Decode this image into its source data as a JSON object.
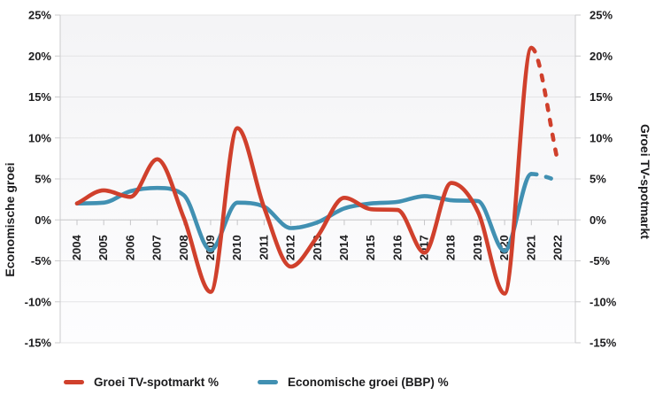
{
  "chart_data": {
    "type": "line",
    "title": "",
    "categories": [
      "2004",
      "2005",
      "2006",
      "2007",
      "2008",
      "2009",
      "2010",
      "2011",
      "2012",
      "2013",
      "2014",
      "2015",
      "2016",
      "2017",
      "2018",
      "2019",
      "2020",
      "2021",
      "2022"
    ],
    "series": [
      {
        "name": "Groei TV-spotmarkt %",
        "color": "#d0402c",
        "axis": "right",
        "dashed_from_index": 17,
        "values": [
          2.0,
          3.6,
          2.8,
          7.4,
          0.2,
          -8.8,
          11.2,
          1.5,
          -5.7,
          -2.0,
          2.7,
          1.3,
          1.2,
          -4.0,
          4.5,
          1.0,
          -9.0,
          21.0,
          7.0
        ]
      },
      {
        "name": "Economische groei (BBP) %",
        "color": "#4190b2",
        "axis": "left",
        "dashed_from_index": 17,
        "values": [
          2.0,
          2.1,
          3.5,
          3.9,
          3.0,
          -3.7,
          2.1,
          1.6,
          -1.0,
          -0.3,
          1.4,
          2.0,
          2.2,
          2.9,
          2.4,
          2.3,
          -3.8,
          5.6,
          4.8
        ]
      }
    ],
    "left_axis": {
      "title": "Economische groei",
      "min": -15,
      "max": 25,
      "tick_step": 5,
      "tick_labels": [
        "25%",
        "20%",
        "15%",
        "10%",
        "5%",
        "0%",
        "-5%",
        "-10%",
        "-15%"
      ]
    },
    "right_axis": {
      "title": "Groei TV-spotmarkt",
      "min": -15,
      "max": 25,
      "tick_step": 5,
      "tick_labels": [
        "25%",
        "20%",
        "15%",
        "10%",
        "5%",
        "0%",
        "-5%",
        "-10%",
        "-15%"
      ]
    },
    "grid": "horizontal-only, x-axis drawn at 0%",
    "legend_position": "bottom-left",
    "note_dashed": "Both series are dashed (forecast) between 2021 and 2022"
  },
  "legend": {
    "items": [
      {
        "label": "Groei TV-spotmarkt %",
        "color": "#d0402c"
      },
      {
        "label": "Economische groei (BBP) %",
        "color": "#4190b2"
      }
    ]
  }
}
